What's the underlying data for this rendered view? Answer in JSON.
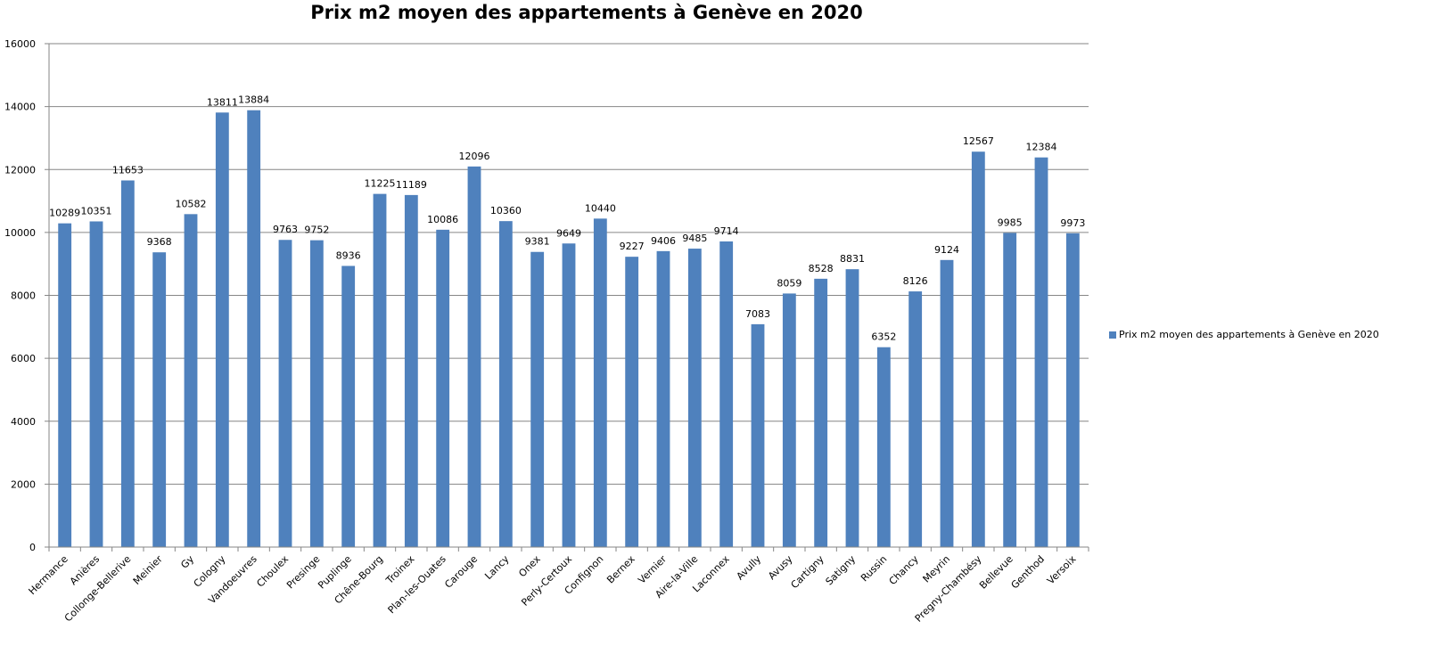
{
  "chart_data": {
    "type": "bar",
    "title": "Prix m2 moyen des appartements à Genève en 2020",
    "xlabel": "",
    "ylabel": "",
    "ylim": [
      0,
      16000
    ],
    "yticks": [
      "0",
      "2000",
      "4000",
      "6000",
      "8000",
      "10000",
      "12000",
      "14000",
      "16000"
    ],
    "grid": true,
    "legend_position": "right",
    "bar_color": "#4f81bd",
    "categories": [
      "Hermance",
      "Anières",
      "Collonge-Bellerive",
      "Meinier",
      "Gy",
      "Cologny",
      "Vandoeuvres",
      "Choulex",
      "Presinge",
      "Puplinge",
      "Chêne-Bourg",
      "Troinex",
      "Plan-les-Ouates",
      "Carouge",
      "Lancy",
      "Onex",
      "Perly-Certoux",
      "Confignon",
      "Bernex",
      "Vernier",
      "Aire-la-Ville",
      "Laconnex",
      "Avully",
      "Avusy",
      "Cartigny",
      "Satigny",
      "Russin",
      "Chancy",
      "Meyrin",
      "Pregny-Chambésy",
      "Bellevue",
      "Genthod",
      "Versoix"
    ],
    "series": [
      {
        "name": "Prix m2 moyen des appartements à Genève en 2020",
        "values": [
          10289,
          10351,
          11653,
          9368,
          10582,
          13811,
          13884,
          9763,
          9752,
          8936,
          11225,
          11189,
          10086,
          12096,
          10360,
          9381,
          9649,
          10440,
          9227,
          9406,
          9485,
          9714,
          7083,
          8059,
          8528,
          8831,
          6352,
          8126,
          9124,
          12567,
          9985,
          12384,
          9973
        ]
      }
    ]
  }
}
